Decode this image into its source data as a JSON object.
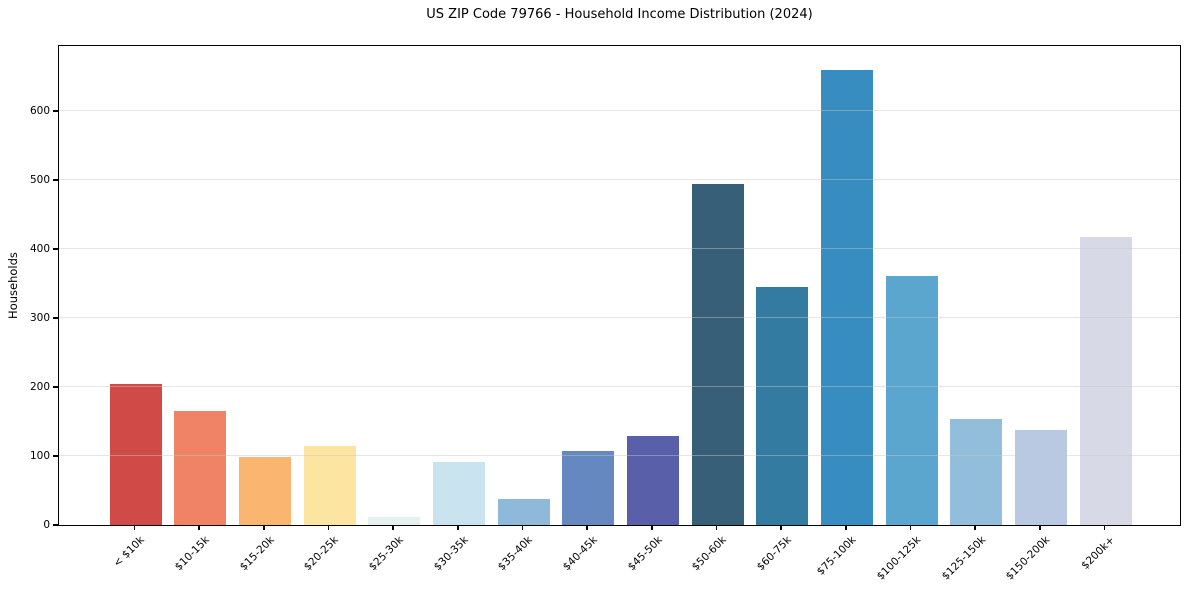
{
  "chart_data": {
    "type": "bar",
    "title": "US ZIP Code 79766 - Household Income Distribution (2024)",
    "xlabel": "",
    "ylabel": "Households",
    "categories": [
      "< $10k",
      "$10-15k",
      "$15-20k",
      "$20-25k",
      "$25-30k",
      "$30-35k",
      "$35-40k",
      "$40-45k",
      "$45-50k",
      "$50-60k",
      "$60-75k",
      "$75-100k",
      "$100-125k",
      "$125-150k",
      "$150-200k",
      "$200k+"
    ],
    "values": [
      205,
      165,
      98,
      115,
      12,
      91,
      38,
      108,
      129,
      495,
      345,
      660,
      361,
      154,
      138,
      418
    ],
    "bar_colors": [
      "#d04b47",
      "#f08365",
      "#fab571",
      "#fce4a1",
      "#e4f1ee",
      "#c9e4ee",
      "#8fb9da",
      "#6588c1",
      "#5a5fa9",
      "#375f77",
      "#337ba1",
      "#388dc0",
      "#5ba6ce",
      "#92bddb",
      "#b9c9e1",
      "#d7d9e6"
    ],
    "yticks": [
      0,
      100,
      200,
      300,
      400,
      500,
      600
    ],
    "ylim": [
      0,
      693
    ],
    "grid": "horizontal",
    "legend": "none",
    "background_color": "#ffffff",
    "axis_color": "#000000",
    "grid_color": "#e6e6e6"
  }
}
